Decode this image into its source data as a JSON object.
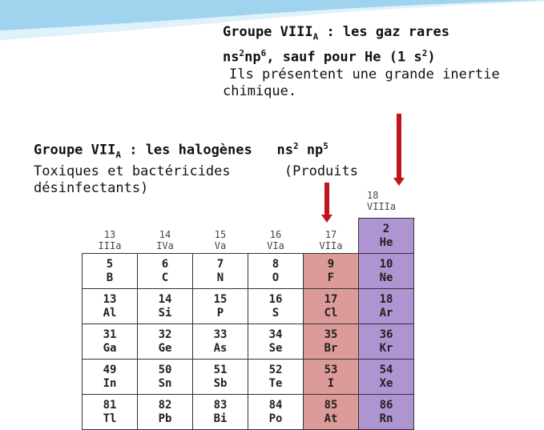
{
  "noble_gases": {
    "title": "Groupe VIII",
    "title_sub": "A",
    "title_suffix": " : les gaz rares",
    "config_prefix": "ns",
    "config_sup1": "2",
    "config_mid": "np",
    "config_sup2": "6",
    "config_suffix": ", sauf pour He (1 s",
    "config_sup3": "2",
    "config_end": ")",
    "line3": "Ils présentent une grande inertie",
    "line4": "chimique."
  },
  "halogens": {
    "title": "Groupe VII",
    "title_sub": "A",
    "title_suffix": " : les halogènes",
    "config_a": "ns",
    "config_sup1": "2",
    "config_b": " np",
    "config_sup2": "5",
    "line2_left": "Toxiques et bactéricides",
    "line2_right": "(Produits",
    "line3": "désinfectants)"
  },
  "group18_header": {
    "number": "18",
    "roman": "VIIIa"
  },
  "column_headers": [
    {
      "number": "13",
      "roman": "IIIa"
    },
    {
      "number": "14",
      "roman": "IVa"
    },
    {
      "number": "15",
      "roman": "Va"
    },
    {
      "number": "16",
      "roman": "VIa"
    },
    {
      "number": "17",
      "roman": "VIIa"
    }
  ],
  "elements": [
    [
      null,
      null,
      null,
      null,
      null,
      {
        "z": "2",
        "sym": "He"
      }
    ],
    [
      {
        "z": "5",
        "sym": "B"
      },
      {
        "z": "6",
        "sym": "C"
      },
      {
        "z": "7",
        "sym": "N"
      },
      {
        "z": "8",
        "sym": "O"
      },
      {
        "z": "9",
        "sym": "F"
      },
      {
        "z": "10",
        "sym": "Ne"
      }
    ],
    [
      {
        "z": "13",
        "sym": "Al"
      },
      {
        "z": "14",
        "sym": "Si"
      },
      {
        "z": "15",
        "sym": "P"
      },
      {
        "z": "16",
        "sym": "S"
      },
      {
        "z": "17",
        "sym": "Cl"
      },
      {
        "z": "18",
        "sym": "Ar"
      }
    ],
    [
      {
        "z": "31",
        "sym": "Ga"
      },
      {
        "z": "32",
        "sym": "Ge"
      },
      {
        "z": "33",
        "sym": "As"
      },
      {
        "z": "34",
        "sym": "Se"
      },
      {
        "z": "35",
        "sym": "Br"
      },
      {
        "z": "36",
        "sym": "Kr"
      }
    ],
    [
      {
        "z": "49",
        "sym": "In"
      },
      {
        "z": "50",
        "sym": "Sn"
      },
      {
        "z": "51",
        "sym": "Sb"
      },
      {
        "z": "52",
        "sym": "Te"
      },
      {
        "z": "53",
        "sym": "I"
      },
      {
        "z": "54",
        "sym": "Xe"
      }
    ],
    [
      {
        "z": "81",
        "sym": "Tl"
      },
      {
        "z": "82",
        "sym": "Pb"
      },
      {
        "z": "83",
        "sym": "Bi"
      },
      {
        "z": "84",
        "sym": "Po"
      },
      {
        "z": "85",
        "sym": "At"
      },
      {
        "z": "86",
        "sym": "Rn"
      }
    ]
  ],
  "colors": {
    "halogen": "#dc9b98",
    "noble": "#ae94d0",
    "arrow": "#c0141b",
    "wave_top": "#9fd3ee",
    "wave_bottom": "#dff1fa"
  }
}
